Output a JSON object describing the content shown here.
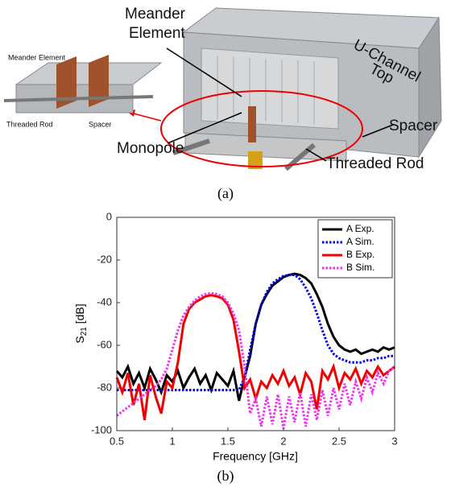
{
  "photo": {
    "labels": {
      "meander": [
        "Meander",
        "Element"
      ],
      "channel": [
        "U-Channel",
        "Top"
      ],
      "spacer": "Spacer",
      "rod": "Threaded Rod",
      "monopole": "Monopole"
    },
    "inset": {
      "meander": "Meander Element",
      "rod": "Threaded Rod",
      "spacer": "Spacer"
    },
    "caption": "(a)"
  },
  "chart_data": {
    "type": "line",
    "xlabel": "Frequency [GHz]",
    "ylabel": [
      "S",
      "21",
      " [dB]"
    ],
    "xlim": [
      0.5,
      3
    ],
    "ylim": [
      -100,
      0
    ],
    "xticks": [
      0.5,
      1,
      1.5,
      2,
      2.5,
      3
    ],
    "yticks": [
      0,
      -20,
      -40,
      -60,
      -80,
      -100
    ],
    "legend": "top-right",
    "x": [
      0.5,
      0.55,
      0.6,
      0.65,
      0.7,
      0.75,
      0.8,
      0.85,
      0.9,
      0.95,
      1,
      1.05,
      1.1,
      1.15,
      1.2,
      1.25,
      1.3,
      1.35,
      1.4,
      1.45,
      1.5,
      1.55,
      1.6,
      1.65,
      1.7,
      1.75,
      1.8,
      1.85,
      1.9,
      1.95,
      2,
      2.05,
      2.1,
      2.15,
      2.2,
      2.25,
      2.3,
      2.35,
      2.4,
      2.45,
      2.5,
      2.55,
      2.6,
      2.65,
      2.7,
      2.75,
      2.8,
      2.85,
      2.9,
      2.95,
      3
    ],
    "series": [
      {
        "name": "A Exp.",
        "color": "#000000",
        "style": "solid",
        "values": [
          -72,
          -75,
          -70,
          -78,
          -73,
          -80,
          -71,
          -76,
          -82,
          -74,
          -77,
          -72,
          -80,
          -75,
          -71,
          -78,
          -74,
          -81,
          -73,
          -76,
          -79,
          -72,
          -86,
          -75,
          -65,
          -50,
          -41,
          -36,
          -32,
          -30,
          -28,
          -27,
          -26.5,
          -27,
          -28.5,
          -31,
          -36,
          -42,
          -50,
          -56,
          -60,
          -62,
          -63,
          -62,
          -64,
          -63,
          -62,
          -63,
          -61,
          -62,
          -61
        ]
      },
      {
        "name": "A Sim.",
        "color": "#0000ee",
        "style": "dotted",
        "values": [
          -81,
          -81,
          -81,
          -81,
          -81,
          -81,
          -81,
          -81,
          -81,
          -81,
          -81,
          -81,
          -81,
          -81,
          -81,
          -81,
          -81,
          -81,
          -81,
          -81,
          -81,
          -81,
          -81,
          -75,
          -62,
          -50,
          -41,
          -35,
          -31,
          -29,
          -27.5,
          -27,
          -27,
          -29,
          -33,
          -38,
          -45,
          -53,
          -60,
          -64,
          -66,
          -67,
          -68,
          -68,
          -68,
          -67,
          -67,
          -66,
          -66,
          -65,
          -65
        ]
      },
      {
        "name": "B Exp.",
        "color": "#ee0000",
        "style": "solid",
        "values": [
          -75,
          -82,
          -73,
          -88,
          -78,
          -95,
          -74,
          -84,
          -92,
          -77,
          -80,
          -68,
          -50,
          -43,
          -40,
          -38.5,
          -37,
          -36.5,
          -37,
          -38,
          -41,
          -48,
          -63,
          -80,
          -76,
          -85,
          -77,
          -80,
          -74,
          -78,
          -72,
          -79,
          -75,
          -83,
          -73,
          -77,
          -90,
          -72,
          -76,
          -70,
          -80,
          -73,
          -76,
          -71,
          -78,
          -72,
          -75,
          -70,
          -74,
          -72,
          -70
        ]
      },
      {
        "name": "B Sim.",
        "color": "#ee33ee",
        "style": "dotted",
        "values": [
          -93,
          -91,
          -89,
          -87,
          -85,
          -83,
          -81,
          -79,
          -76,
          -71,
          -62,
          -53,
          -46,
          -42,
          -39,
          -37,
          -36,
          -35.5,
          -36,
          -37,
          -40,
          -45,
          -53,
          -70,
          -92,
          -85,
          -98,
          -84,
          -97,
          -83,
          -99,
          -84,
          -96,
          -82,
          -98,
          -83,
          -95,
          -81,
          -93,
          -80,
          -90,
          -78,
          -88,
          -77,
          -85,
          -75,
          -82,
          -73,
          -78,
          -72,
          -70
        ]
      }
    ]
  },
  "caption_b": "(b)"
}
